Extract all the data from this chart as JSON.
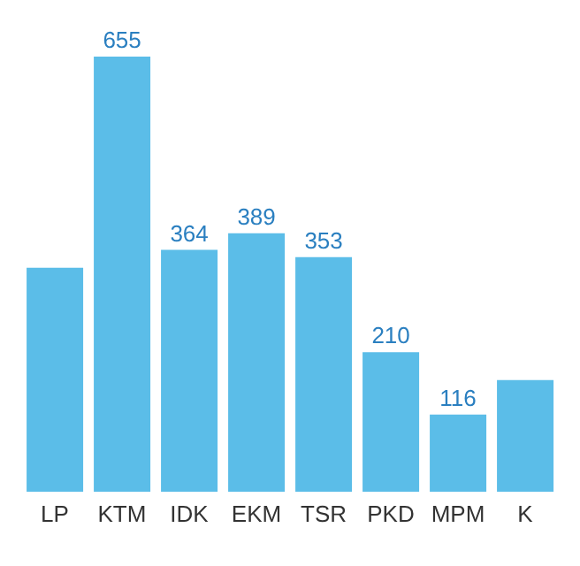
{
  "chart_data": {
    "type": "bar",
    "categories": [
      "LP",
      "KTM",
      "IDK",
      "EKM",
      "TSR",
      "PKD",
      "MPM",
      "K"
    ],
    "values": [
      337,
      655,
      364,
      389,
      353,
      210,
      116,
      168
    ],
    "value_labels": [
      null,
      "655",
      "364",
      "389",
      "353",
      "210",
      "116",
      null
    ],
    "color": "#5bbde8",
    "ylim": [
      0,
      655
    ],
    "tick_labels": "x",
    "grid": false
  }
}
